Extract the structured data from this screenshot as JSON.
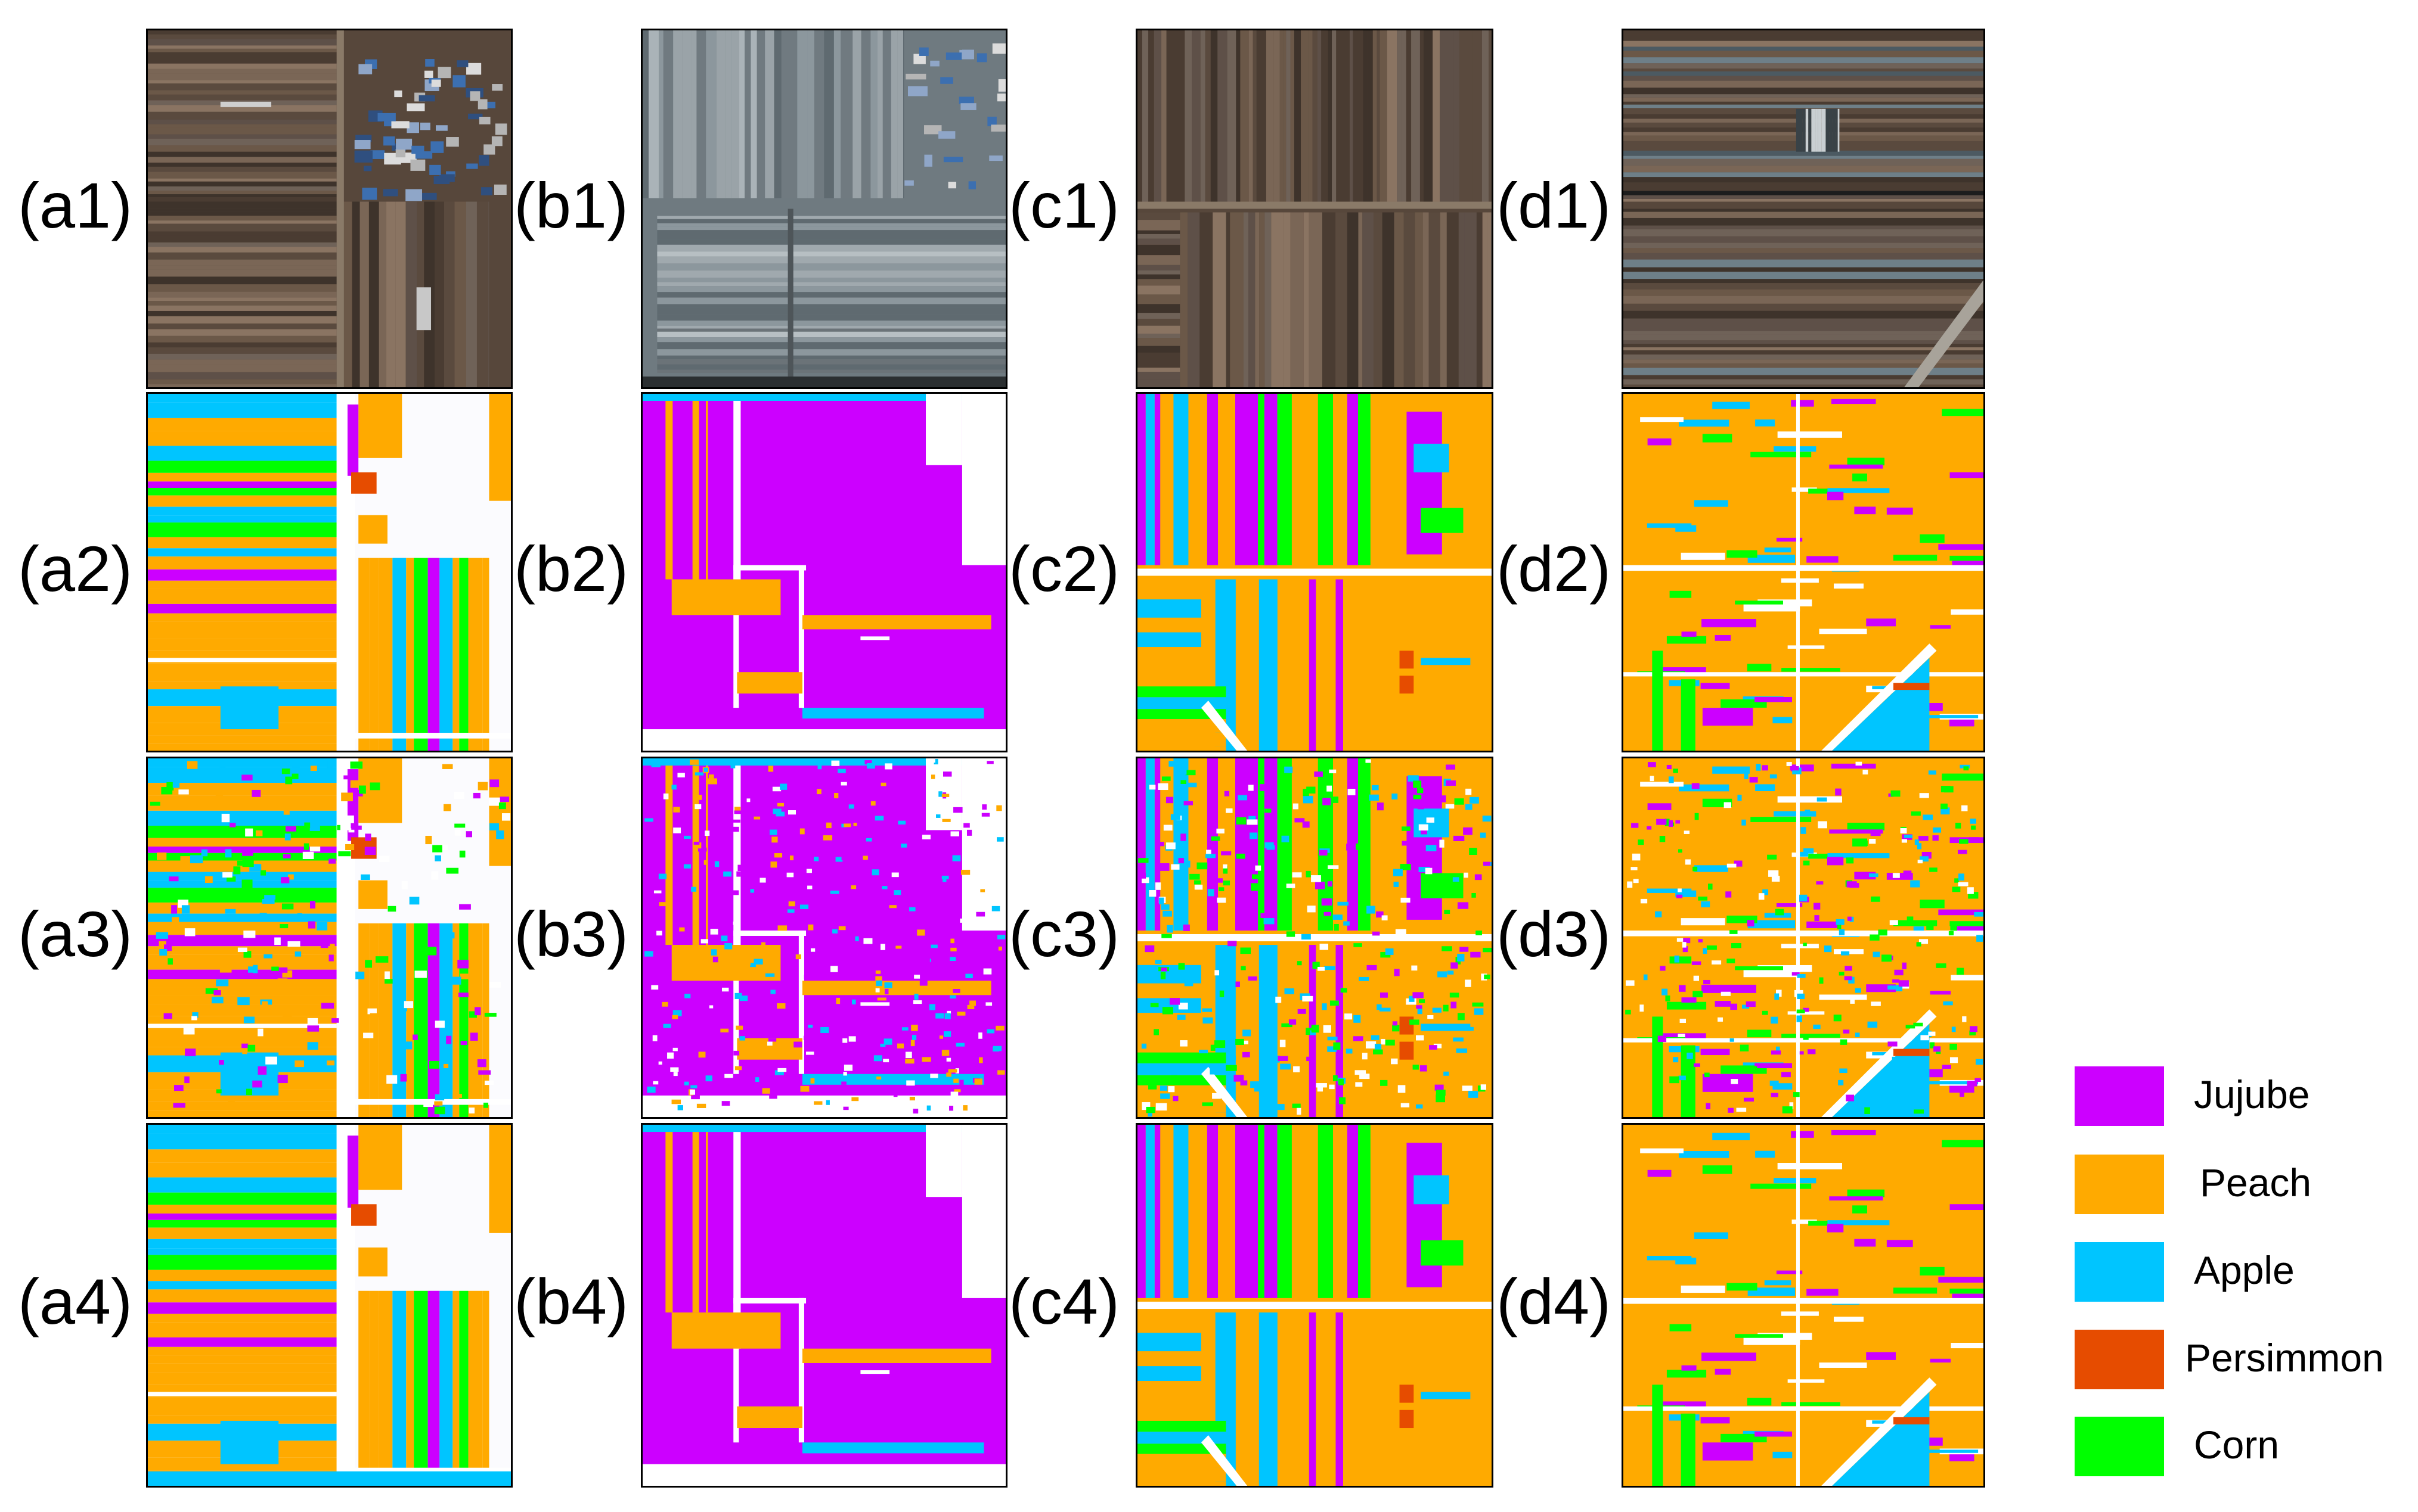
{
  "figure": {
    "rows": [
      "1",
      "2",
      "3",
      "4"
    ],
    "columns": [
      "a",
      "b",
      "c",
      "d"
    ],
    "panel_labels": [
      [
        "(a1)",
        "(b1)",
        "(c1)",
        "(d1)"
      ],
      [
        "(a2)",
        "(b2)",
        "(c2)",
        "(d2)"
      ],
      [
        "(a3)",
        "(b3)",
        "(c3)",
        "(d3)"
      ],
      [
        "(a4)",
        "(b4)",
        "(c4)",
        "(d4)"
      ]
    ]
  },
  "legend": {
    "items": [
      {
        "label": "Jujube",
        "color": "#cc00ff"
      },
      {
        "label": "Peach",
        "color": "#ffaa00"
      },
      {
        "label": "Apple",
        "color": "#00c5ff"
      },
      {
        "label": "Persimmon",
        "color": "#e64c00"
      },
      {
        "label": "Corn",
        "color": "#00ff00"
      }
    ]
  }
}
